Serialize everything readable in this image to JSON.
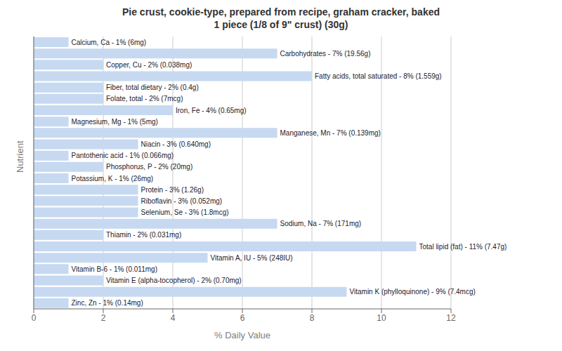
{
  "chart_data": {
    "type": "bar",
    "orientation": "horizontal",
    "title": "Pie crust, cookie-type, prepared from recipe, graham cracker, baked\n1 piece (1/8 of 9\" crust) (30g)",
    "xlabel": "% Daily Value",
    "ylabel": "Nutrient",
    "categories": [
      "Calcium, Ca - 1% (6mg)",
      "Carbohydrates - 7% (19.56g)",
      "Copper, Cu - 2% (0.038mg)",
      "Fatty acids, total saturated - 8% (1.559g)",
      "Fiber, total dietary - 2% (0.4g)",
      "Folate, total - 2% (7mcg)",
      "Iron, Fe - 4% (0.65mg)",
      "Magnesium, Mg - 1% (5mg)",
      "Manganese, Mn - 7% (0.139mg)",
      "Niacin - 3% (0.640mg)",
      "Pantothenic acid - 1% (0.066mg)",
      "Phosphorus, P - 2% (20mg)",
      "Potassium, K - 1% (26mg)",
      "Protein - 3% (1.26g)",
      "Riboflavin - 3% (0.052mg)",
      "Selenium, Se - 3% (1.8mcg)",
      "Sodium, Na - 7% (171mg)",
      "Thiamin - 2% (0.031mg)",
      "Total lipid (fat) - 11% (7.47g)",
      "Vitamin A, IU - 5% (248IU)",
      "Vitamin B-6 - 1% (0.011mg)",
      "Vitamin E (alpha-tocopherol) - 2% (0.70mg)",
      "Vitamin K (phylloquinone) - 9% (7.4mcg)",
      "Zinc, Zn - 1% (0.14mg)"
    ],
    "values": [
      1,
      7,
      2,
      8,
      2,
      2,
      4,
      1,
      7,
      3,
      1,
      2,
      1,
      3,
      3,
      3,
      7,
      2,
      11,
      5,
      1,
      2,
      9,
      1
    ],
    "color": "#c6d9f1",
    "xlim": [
      0,
      12
    ],
    "xticks": [
      0,
      2,
      4,
      6,
      8,
      10,
      12
    ],
    "grid": true,
    "tick_labels": "x"
  }
}
